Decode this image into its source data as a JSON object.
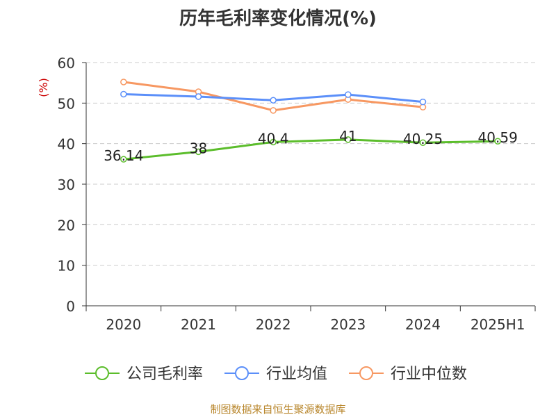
{
  "chart_data": {
    "type": "line",
    "title": "历年毛利率变化情况(%)",
    "ylabel": "(%)",
    "categories": [
      "2020",
      "2021",
      "2022",
      "2023",
      "2024",
      "2025H1"
    ],
    "ylim": [
      0,
      60
    ],
    "yticks": [
      0,
      10,
      20,
      30,
      40,
      50,
      60
    ],
    "grid": true,
    "legend_position": "bottom",
    "series": [
      {
        "name": "公司毛利率",
        "color": "#5bbd2b",
        "values": [
          36.14,
          38,
          40.4,
          41,
          40.25,
          40.59
        ],
        "labels": [
          "36.14",
          "38",
          "40.4",
          "41",
          "40.25",
          "40.59"
        ]
      },
      {
        "name": "行业均值",
        "color": "#5b8ff9",
        "values": [
          52.2,
          51.6,
          50.7,
          52.1,
          50.3,
          null
        ]
      },
      {
        "name": "行业中位数",
        "color": "#f79862",
        "values": [
          55.2,
          52.8,
          48.2,
          50.9,
          49.0,
          null
        ]
      }
    ],
    "source": "制图数据来自恒生聚源数据库"
  }
}
